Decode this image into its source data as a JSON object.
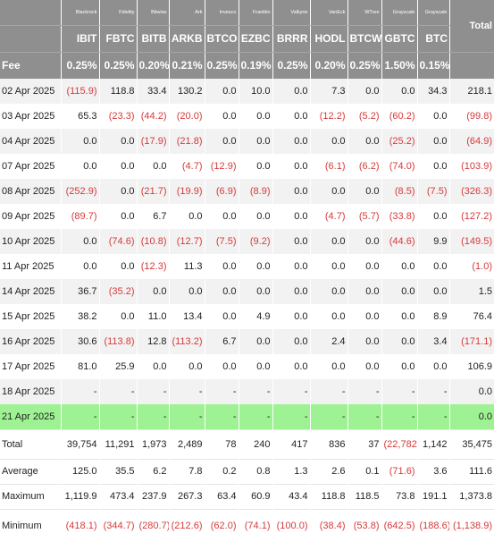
{
  "colors": {
    "header_bg": "#8f8f8f",
    "negative": "#d63a3a",
    "highlight_row": "#9ef293",
    "stripe": "#f2f2f2"
  },
  "header": {
    "issuers": [
      "",
      "Blackrock",
      "Fidelity",
      "Bitwise",
      "Ark",
      "Invesco",
      "Franklin",
      "Valkyrie",
      "VanEck",
      "WTree",
      "Grayscale",
      "Grayscale"
    ],
    "total_label": "Total",
    "tickers": [
      "",
      "IBIT",
      "FBTC",
      "BITB",
      "ARKB",
      "BTCO",
      "EZBC",
      "BRRR",
      "HODL",
      "BTCW",
      "GBTC",
      "BTC",
      ""
    ],
    "fees": [
      "Fee",
      "0.25%",
      "0.25%",
      "0.20%",
      "0.21%",
      "0.25%",
      "0.19%",
      "0.25%",
      "0.20%",
      "0.25%",
      "1.50%",
      "0.15%",
      ""
    ]
  },
  "rows": [
    {
      "date": "02 Apr 2025",
      "values": [
        "(115.9)",
        "118.8",
        "33.4",
        "130.2",
        "0.0",
        "10.0",
        "0.0",
        "7.3",
        "0.0",
        "0.0",
        "34.3",
        "218.1"
      ]
    },
    {
      "date": "03 Apr 2025",
      "values": [
        "65.3",
        "(23.3)",
        "(44.2)",
        "(20.0)",
        "0.0",
        "0.0",
        "0.0",
        "(12.2)",
        "(5.2)",
        "(60.2)",
        "0.0",
        "(99.8)"
      ]
    },
    {
      "date": "04 Apr 2025",
      "values": [
        "0.0",
        "0.0",
        "(17.9)",
        "(21.8)",
        "0.0",
        "0.0",
        "0.0",
        "0.0",
        "0.0",
        "(25.2)",
        "0.0",
        "(64.9)"
      ]
    },
    {
      "date": "07 Apr 2025",
      "values": [
        "0.0",
        "0.0",
        "0.0",
        "(4.7)",
        "(12.9)",
        "0.0",
        "0.0",
        "(6.1)",
        "(6.2)",
        "(74.0)",
        "0.0",
        "(103.9)"
      ]
    },
    {
      "date": "08 Apr 2025",
      "values": [
        "(252.9)",
        "0.0",
        "(21.7)",
        "(19.9)",
        "(6.9)",
        "(8.9)",
        "0.0",
        "0.0",
        "0.0",
        "(8.5)",
        "(7.5)",
        "(326.3)"
      ]
    },
    {
      "date": "09 Apr 2025",
      "values": [
        "(89.7)",
        "0.0",
        "6.7",
        "0.0",
        "0.0",
        "0.0",
        "0.0",
        "(4.7)",
        "(5.7)",
        "(33.8)",
        "0.0",
        "(127.2)"
      ]
    },
    {
      "date": "10 Apr 2025",
      "values": [
        "0.0",
        "(74.6)",
        "(10.8)",
        "(12.7)",
        "(7.5)",
        "(9.2)",
        "0.0",
        "0.0",
        "0.0",
        "(44.6)",
        "9.9",
        "(149.5)"
      ]
    },
    {
      "date": "11 Apr 2025",
      "values": [
        "0.0",
        "0.0",
        "(12.3)",
        "11.3",
        "0.0",
        "0.0",
        "0.0",
        "0.0",
        "0.0",
        "0.0",
        "0.0",
        "(1.0)"
      ]
    },
    {
      "date": "14 Apr 2025",
      "values": [
        "36.7",
        "(35.2)",
        "0.0",
        "0.0",
        "0.0",
        "0.0",
        "0.0",
        "0.0",
        "0.0",
        "0.0",
        "0.0",
        "1.5"
      ]
    },
    {
      "date": "15 Apr 2025",
      "values": [
        "38.2",
        "0.0",
        "11.0",
        "13.4",
        "0.0",
        "4.9",
        "0.0",
        "0.0",
        "0.0",
        "0.0",
        "8.9",
        "76.4"
      ]
    },
    {
      "date": "16 Apr 2025",
      "values": [
        "30.6",
        "(113.8)",
        "12.8",
        "(113.2)",
        "6.7",
        "0.0",
        "0.0",
        "2.4",
        "0.0",
        "0.0",
        "3.4",
        "(171.1)"
      ]
    },
    {
      "date": "17 Apr 2025",
      "values": [
        "81.0",
        "25.9",
        "0.0",
        "0.0",
        "0.0",
        "0.0",
        "0.0",
        "0.0",
        "0.0",
        "0.0",
        "0.0",
        "106.9"
      ]
    },
    {
      "date": "18 Apr 2025",
      "values": [
        "-",
        "-",
        "-",
        "-",
        "-",
        "-",
        "-",
        "-",
        "-",
        "-",
        "-",
        "0.0"
      ]
    },
    {
      "date": "21 Apr 2025",
      "highlight": true,
      "values": [
        "-",
        "-",
        "-",
        "-",
        "-",
        "-",
        "-",
        "-",
        "-",
        "-",
        "-",
        "0.0"
      ]
    }
  ],
  "summary": [
    {
      "label": "Total",
      "key": "total",
      "values": [
        "39,754",
        "11,291",
        "1,973",
        "2,489",
        "78",
        "240",
        "417",
        "836",
        "37",
        "(22,782)",
        "1,142",
        "35,475"
      ]
    },
    {
      "label": "Average",
      "key": "avg",
      "values": [
        "125.0",
        "35.5",
        "6.2",
        "7.8",
        "0.2",
        "0.8",
        "1.3",
        "2.6",
        "0.1",
        "(71.6)",
        "3.6",
        "111.6"
      ]
    },
    {
      "label": "Maximum",
      "key": "max",
      "values": [
        "1,119.9",
        "473.4",
        "237.9",
        "267.3",
        "63.4",
        "60.9",
        "43.4",
        "118.8",
        "118.5",
        "73.8",
        "191.1",
        "1,373.8"
      ]
    },
    {
      "label": "Minimum",
      "key": "min",
      "values": [
        "(418.1)",
        "(344.7)",
        "(280.7)",
        "(212.6)",
        "(62.0)",
        "(74.1)",
        "(100.0)",
        "(38.4)",
        "(53.8)",
        "(642.5)",
        "(188.6)",
        "(1,138.9)"
      ]
    }
  ]
}
